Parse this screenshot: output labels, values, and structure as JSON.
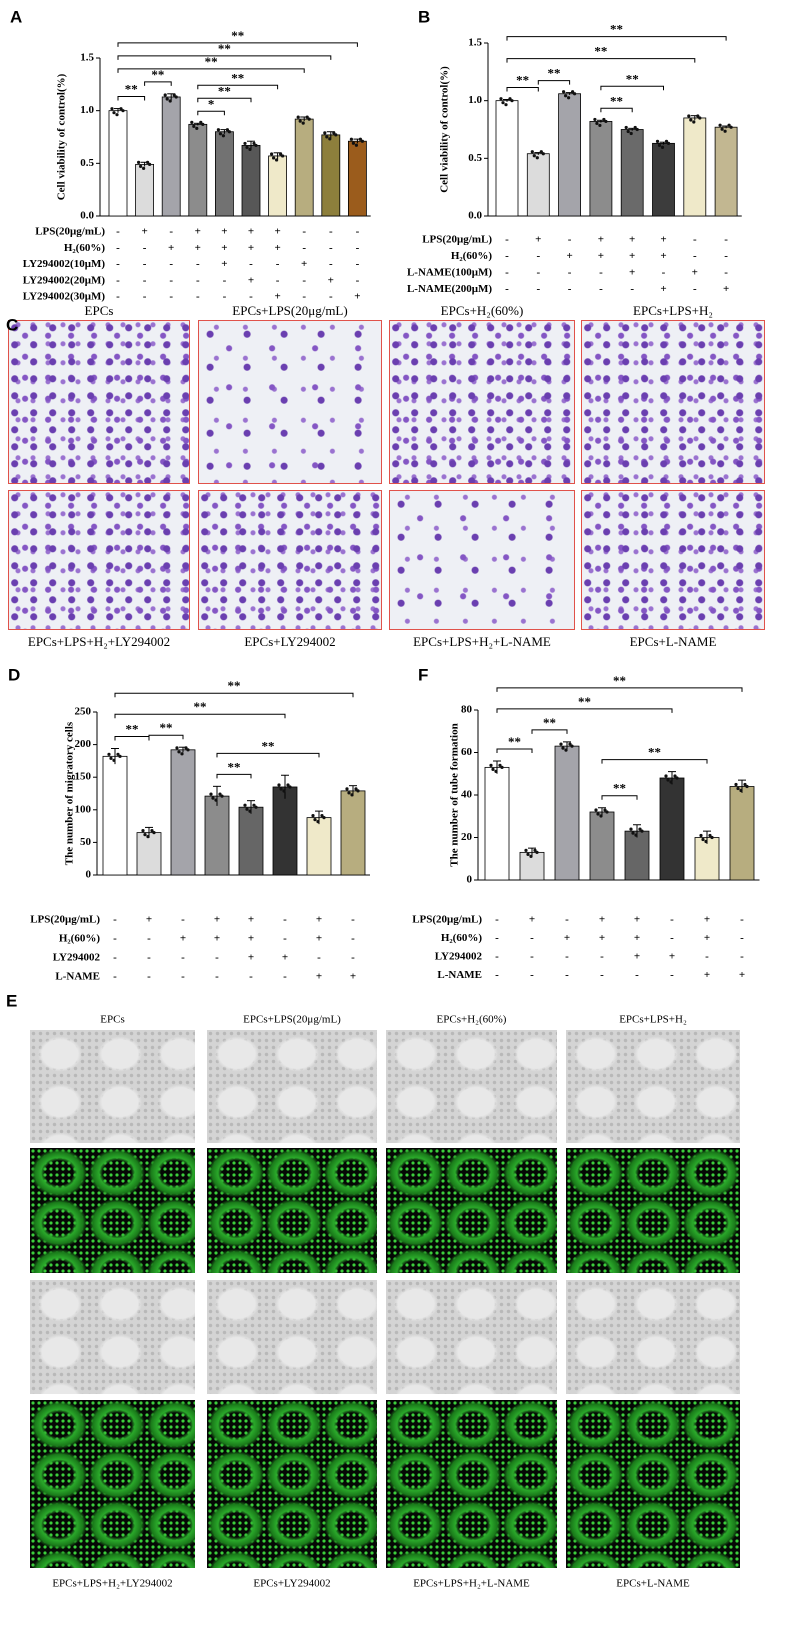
{
  "chart_data": [
    {
      "type": "bar",
      "panel": "A",
      "ylabel": "Cell viability of control(%)",
      "categories": [
        null,
        null,
        null,
        null,
        null,
        null,
        null,
        null,
        null,
        null
      ],
      "values": [
        1.0,
        0.49,
        1.13,
        0.87,
        0.8,
        0.67,
        0.57,
        0.92,
        0.77,
        0.71
      ],
      "errors": [
        0.02,
        0.02,
        0.03,
        0.01,
        0.02,
        0.04,
        0.03,
        0.02,
        0.03,
        0.02
      ],
      "colors": [
        "#ffffff",
        "#dcdcdc",
        "#a4a4aa",
        "#8c8c8c",
        "#727272",
        "#575757",
        "#efe9c9",
        "#b7ad7f",
        "#8d7f3c",
        "#9b5c1c"
      ],
      "ylim": [
        0,
        1.5
      ],
      "yticks": [
        {
          "value": 0,
          "label": "0.0"
        },
        {
          "value": 0.5,
          "label": "0.5"
        },
        {
          "value": 1,
          "label": "1.0"
        },
        {
          "value": 1.5,
          "label": "1.5"
        }
      ],
      "conditions": [
        {
          "label": "LPS(20μg/mL)",
          "signs": [
            "-",
            "+",
            "-",
            "+",
            "+",
            "+",
            "+",
            "-",
            "-",
            "-"
          ]
        },
        {
          "label": "H₂(60%)",
          "signs": [
            "-",
            "-",
            "+",
            "+",
            "+",
            "+",
            "+",
            "-",
            "-",
            "-"
          ]
        },
        {
          "label": "LY294002(10μM)",
          "signs": [
            "-",
            "-",
            "-",
            "-",
            "+",
            "-",
            "-",
            "+",
            "-",
            "-"
          ]
        },
        {
          "label": "LY294002(20μM)",
          "signs": [
            "-",
            "-",
            "-",
            "-",
            "-",
            "+",
            "-",
            "-",
            "+",
            "-"
          ]
        },
        {
          "label": "LY294002(30μM)",
          "signs": [
            "-",
            "-",
            "-",
            "-",
            "-",
            "-",
            "+",
            "-",
            "-",
            "+"
          ]
        }
      ],
      "annotations": [
        {
          "text": "**",
          "from": 0,
          "to": 1
        },
        {
          "text": "**",
          "from": 1,
          "to": 2
        },
        {
          "text": "*",
          "from": 3,
          "to": 4
        },
        {
          "text": "**",
          "from": 3,
          "to": 5
        },
        {
          "text": "**",
          "from": 3,
          "to": 6
        },
        {
          "text": "**",
          "from": 0,
          "to": 7
        },
        {
          "text": "**",
          "from": 0,
          "to": 8
        },
        {
          "text": "**",
          "from": 0,
          "to": 9
        }
      ]
    },
    {
      "type": "bar",
      "panel": "B",
      "ylabel": "Cell viability of control(%)",
      "categories": [
        null,
        null,
        null,
        null,
        null,
        null,
        null,
        null
      ],
      "values": [
        1.0,
        0.54,
        1.06,
        0.82,
        0.75,
        0.63,
        0.85,
        0.77
      ],
      "errors": [
        0.01,
        0.01,
        0.01,
        0.01,
        0.01,
        0.01,
        0.02,
        0.01
      ],
      "colors": [
        "#ffffff",
        "#dcdcdc",
        "#a4a4aa",
        "#8c8c8c",
        "#6a6a6a",
        "#3c3c3c",
        "#efe9c9",
        "#c2b791"
      ],
      "ylim": [
        0,
        1.5
      ],
      "yticks": [
        {
          "value": 0,
          "label": "0.0"
        },
        {
          "value": 0.5,
          "label": "0.5"
        },
        {
          "value": 1,
          "label": "1.0"
        },
        {
          "value": 1.5,
          "label": "1.5"
        }
      ],
      "conditions": [
        {
          "label": "LPS(20μg/mL)",
          "signs": [
            "-",
            "+",
            "-",
            "+",
            "+",
            "+",
            "-",
            "-"
          ]
        },
        {
          "label": "H₂(60%)",
          "signs": [
            "-",
            "-",
            "+",
            "+",
            "+",
            "+",
            "-",
            "-"
          ]
        },
        {
          "label": "L-NAME(100μM)",
          "signs": [
            "-",
            "-",
            "-",
            "-",
            "+",
            "-",
            "+",
            "-"
          ]
        },
        {
          "label": "L-NAME(200μM)",
          "signs": [
            "-",
            "-",
            "-",
            "-",
            "-",
            "+",
            "-",
            "+"
          ]
        }
      ],
      "annotations": [
        {
          "text": "**",
          "from": 0,
          "to": 1
        },
        {
          "text": "**",
          "from": 1,
          "to": 2
        },
        {
          "text": "**",
          "from": 3,
          "to": 4
        },
        {
          "text": "**",
          "from": 3,
          "to": 5
        },
        {
          "text": "**",
          "from": 0,
          "to": 6
        },
        {
          "text": "**",
          "from": 0,
          "to": 7
        }
      ]
    },
    {
      "type": "bar",
      "panel": "D",
      "ylabel": "The number of migratory cells",
      "categories": [
        null,
        null,
        null,
        null,
        null,
        null,
        null,
        null
      ],
      "values": [
        182,
        65,
        192,
        121,
        104,
        135,
        88,
        129
      ],
      "errors": [
        12,
        8,
        4,
        15,
        10,
        18,
        10,
        8
      ],
      "colors": [
        "#ffffff",
        "#dcdcdc",
        "#a4a4aa",
        "#8c8c8c",
        "#666666",
        "#333333",
        "#efe9c9",
        "#b7ad7f"
      ],
      "ylim": [
        0,
        250
      ],
      "yticks": [
        0,
        50,
        100,
        150,
        200,
        250
      ],
      "conditions": [
        {
          "label": "LPS(20μg/mL)",
          "signs": [
            "-",
            "+",
            "-",
            "+",
            "+",
            "-",
            "+",
            "-"
          ]
        },
        {
          "label": "H₂(60%)",
          "signs": [
            "-",
            "-",
            "+",
            "+",
            "+",
            "-",
            "+",
            "-"
          ]
        },
        {
          "label": "LY294002",
          "signs": [
            "-",
            "-",
            "-",
            "-",
            "+",
            "+",
            "-",
            "-"
          ]
        },
        {
          "label": "L-NAME",
          "signs": [
            "-",
            "-",
            "-",
            "-",
            "-",
            "-",
            "+",
            "+"
          ]
        }
      ],
      "annotations": [
        {
          "text": "**",
          "from": 0,
          "to": 1
        },
        {
          "text": "**",
          "from": 1,
          "to": 2
        },
        {
          "text": "**",
          "from": 3,
          "to": 4
        },
        {
          "text": "**",
          "from": 3,
          "to": 6
        },
        {
          "text": "**",
          "from": 0,
          "to": 5
        },
        {
          "text": "**",
          "from": 0,
          "to": 7
        }
      ]
    },
    {
      "type": "bar",
      "panel": "F",
      "ylabel": "The number of tube formation",
      "categories": [
        null,
        null,
        null,
        null,
        null,
        null,
        null,
        null
      ],
      "values": [
        53,
        13,
        63,
        32,
        23,
        48,
        20,
        44
      ],
      "errors": [
        3,
        2,
        2,
        2,
        3,
        3,
        3,
        3
      ],
      "colors": [
        "#ffffff",
        "#dcdcdc",
        "#a4a4aa",
        "#8c8c8c",
        "#666666",
        "#333333",
        "#efe9c9",
        "#b7ad7f"
      ],
      "ylim": [
        0,
        80
      ],
      "yticks": [
        0,
        20,
        40,
        60,
        80
      ],
      "conditions": [
        {
          "label": "LPS(20μg/mL)",
          "signs": [
            "-",
            "+",
            "-",
            "+",
            "+",
            "-",
            "+",
            "-"
          ]
        },
        {
          "label": "H₂(60%)",
          "signs": [
            "-",
            "-",
            "+",
            "+",
            "+",
            "-",
            "+",
            "-"
          ]
        },
        {
          "label": "LY294002",
          "signs": [
            "-",
            "-",
            "-",
            "-",
            "+",
            "+",
            "-",
            "-"
          ]
        },
        {
          "label": "L-NAME",
          "signs": [
            "-",
            "-",
            "-",
            "-",
            "-",
            "-",
            "+",
            "+"
          ]
        }
      ],
      "annotations": [
        {
          "text": "**",
          "from": 0,
          "to": 1
        },
        {
          "text": "**",
          "from": 1,
          "to": 2
        },
        {
          "text": "**",
          "from": 3,
          "to": 4
        },
        {
          "text": "**",
          "from": 3,
          "to": 6
        },
        {
          "text": "**",
          "from": 0,
          "to": 5
        },
        {
          "text": "**",
          "from": 0,
          "to": 7
        }
      ]
    }
  ],
  "panel_c": {
    "label": "C",
    "captions": [
      "EPCs",
      "EPCs+LPS(20μg/mL)",
      "EPCs+H₂(60%)",
      "EPCs+LPS+H₂",
      "EPCs+LPS+H₂+LY294002",
      "EPCs+LY294002",
      "EPCs+LPS+H₂+L-NAME",
      "EPCs+L-NAME"
    ]
  },
  "panel_e": {
    "label": "E",
    "captions": [
      "EPCs",
      "EPCs+LPS(20μg/mL)",
      "EPCs+H₂(60%)",
      "EPCs+LPS+H₂",
      "EPCs+LPS+H₂+LY294002",
      "EPCs+LY294002",
      "EPCs+LPS+H₂+L-NAME",
      "EPCs+L-NAME"
    ]
  }
}
